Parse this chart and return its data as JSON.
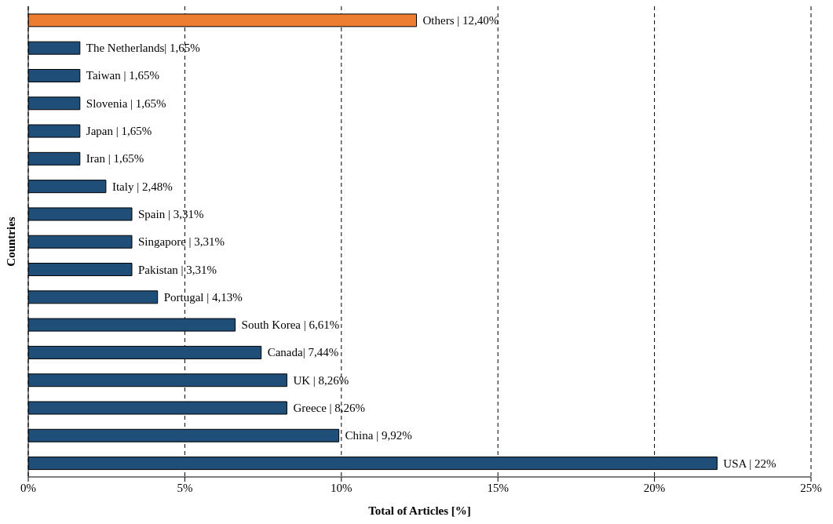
{
  "chart_data": {
    "type": "bar",
    "orientation": "horizontal",
    "xlabel": "Total of Articles [%]",
    "ylabel": "Countries",
    "categories": [
      null,
      null,
      null,
      null,
      null,
      null,
      null,
      null,
      null,
      null,
      null,
      null,
      null,
      null,
      null,
      null,
      null
    ],
    "values": [
      12.4,
      1.65,
      1.65,
      1.65,
      1.65,
      1.65,
      2.48,
      3.31,
      3.31,
      3.31,
      4.13,
      6.61,
      7.44,
      8.26,
      8.26,
      9.92,
      22
    ],
    "value_labels": [
      "Others | 12,40%",
      "The Netherlands| 1,65%",
      "Taiwan | 1,65%",
      "Slovenia | 1,65%",
      "Japan | 1,65%",
      "Iran | 1,65%",
      "Italy | 2,48%",
      "Spain | 3,31%",
      "Singapore | 3,31%",
      "Pakistan | 3,31%",
      "Portugal | 4,13%",
      "South Korea | 6,61%",
      "Canada| 7,44%",
      "UK | 8,26%",
      "Greece | 8,26%",
      "China | 9,92%",
      "USA | 22%"
    ],
    "colors": [
      "#ed7d31",
      "#1f4e79",
      "#1f4e79",
      "#1f4e79",
      "#1f4e79",
      "#1f4e79",
      "#1f4e79",
      "#1f4e79",
      "#1f4e79",
      "#1f4e79",
      "#1f4e79",
      "#1f4e79",
      "#1f4e79",
      "#1f4e79",
      "#1f4e79",
      "#1f4e79",
      "#1f4e79"
    ],
    "xlim": [
      0,
      25
    ],
    "xticks": [
      {
        "value": 0,
        "label": "0%"
      },
      {
        "value": 5,
        "label": "5%"
      },
      {
        "value": 10,
        "label": "10%"
      },
      {
        "value": 15,
        "label": "15%"
      },
      {
        "value": 20,
        "label": "20%"
      },
      {
        "value": 25,
        "label": "25%"
      }
    ],
    "grid": "x",
    "legend": false
  }
}
